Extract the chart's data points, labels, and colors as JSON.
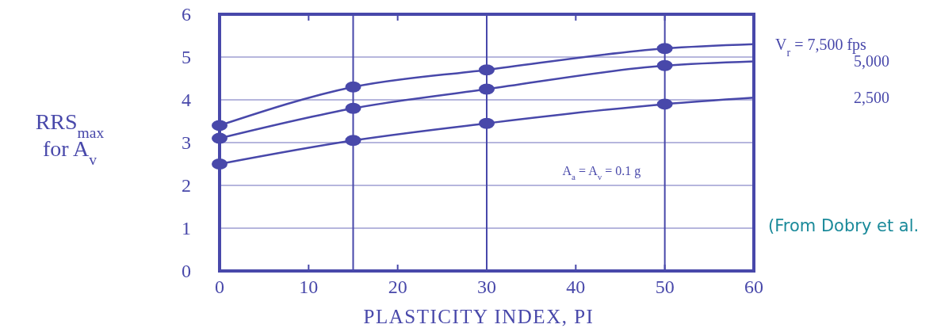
{
  "chart_data": {
    "type": "line",
    "xlabel": "PLASTICITY INDEX, PI",
    "ylabel": "RRS$_{max}$ for A$_{v}$",
    "xlim": [
      0,
      60
    ],
    "ylim": [
      0,
      6
    ],
    "xticks": [
      0,
      10,
      20,
      30,
      40,
      50,
      60
    ],
    "yticks": [
      0,
      1,
      2,
      3,
      4,
      5,
      6
    ],
    "grid": "y",
    "marker": "circle",
    "ref_lines": [
      {
        "axis": "x",
        "value": 15
      },
      {
        "axis": "x",
        "value": 30
      },
      {
        "axis": "x",
        "value": 50
      }
    ],
    "annotations": [
      "A$_{a}$ = A$_{v}$ = 0.1 g",
      "(From Dobry et al."
    ],
    "series": [
      {
        "name": "V$_{r}$ = 7,500 fps",
        "color": "#4848aa",
        "marker": "none",
        "x": [
          0,
          15,
          30,
          50,
          60
        ],
        "values": [
          3.4,
          4.3,
          4.7,
          5.2,
          5.3
        ]
      },
      {
        "name": "5,000",
        "color": "#4848aa",
        "marker": "none",
        "x": [
          0,
          15,
          30,
          50,
          60
        ],
        "values": [
          3.1,
          3.8,
          4.25,
          4.8,
          4.9
        ]
      },
      {
        "name": "2,500",
        "color": "#4848aa",
        "marker": "none",
        "x": [
          0,
          15,
          30,
          50,
          60
        ],
        "values": [
          2.5,
          3.05,
          3.45,
          3.9,
          4.05
        ]
      },
      {
        "color": "#4848aa",
        "type": "scatter",
        "x": [
          0,
          15,
          30,
          50
        ],
        "values": [
          3.4,
          4.3,
          4.7,
          5.2
        ]
      },
      {
        "color": "#4848aa",
        "type": "scatter",
        "x": [
          0,
          15,
          30,
          50
        ],
        "values": [
          3.1,
          3.8,
          4.25,
          4.8
        ]
      },
      {
        "color": "#4848aa",
        "type": "scatter",
        "x": [
          0,
          15,
          30,
          50
        ],
        "values": [
          2.5,
          3.05,
          3.45,
          3.9
        ]
      }
    ]
  }
}
